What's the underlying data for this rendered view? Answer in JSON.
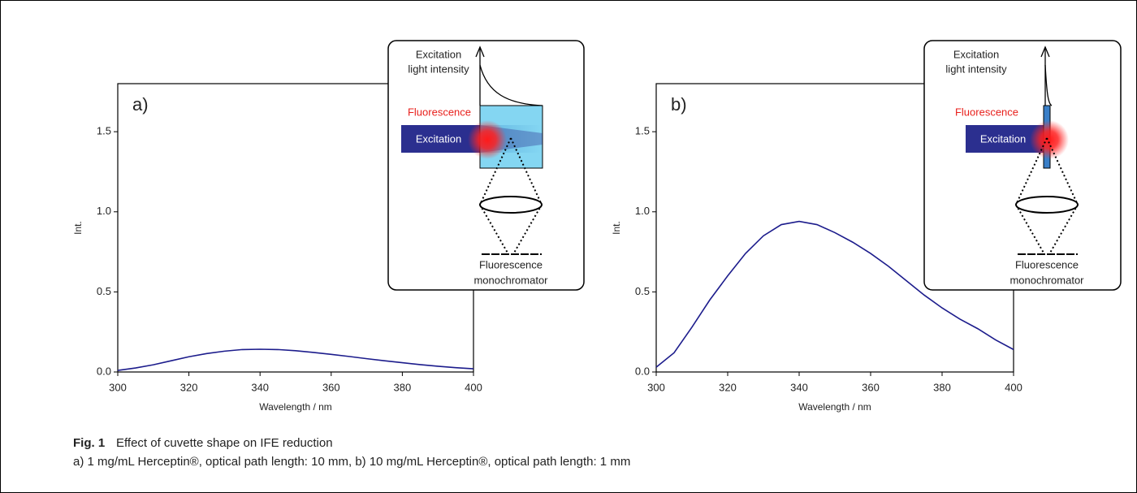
{
  "chart_data": [
    {
      "type": "line",
      "panel_label": "a)",
      "xlabel": "Wavelength / nm",
      "ylabel": "Int.",
      "xlim": [
        300,
        400
      ],
      "ylim": [
        0,
        1.8
      ],
      "xticks": [
        300,
        320,
        340,
        360,
        380,
        400
      ],
      "yticks": [
        {
          "value": 0,
          "label": "0.0"
        },
        0.5,
        {
          "value": 1,
          "label": "1.0"
        },
        1.5
      ],
      "x": [
        300,
        305,
        310,
        315,
        320,
        325,
        330,
        335,
        340,
        345,
        350,
        355,
        360,
        365,
        370,
        375,
        380,
        385,
        390,
        395,
        400
      ],
      "series": [
        {
          "color": "#1c1c8c",
          "values": [
            0.01,
            0.025,
            0.045,
            0.07,
            0.095,
            0.115,
            0.13,
            0.14,
            0.142,
            0.14,
            0.133,
            0.122,
            0.11,
            0.097,
            0.083,
            0.07,
            0.058,
            0.046,
            0.036,
            0.027,
            0.02
          ]
        }
      ],
      "inset": {
        "top_label": [
          "Excitation",
          "light intensity"
        ],
        "fluorescence": "Fluorescence",
        "excitation": "Excitation",
        "bottom_label": [
          "Fluorescence",
          "monochromator"
        ]
      }
    },
    {
      "type": "line",
      "panel_label": "b)",
      "xlabel": "Wavelength / nm",
      "ylabel": "Int.",
      "xlim": [
        300,
        400
      ],
      "ylim": [
        0,
        1.8
      ],
      "xticks": [
        300,
        320,
        340,
        360,
        380,
        400
      ],
      "yticks": [
        {
          "value": 0,
          "label": "0.0"
        },
        0.5,
        {
          "value": 1,
          "label": "1.0"
        },
        1.5
      ],
      "x": [
        300,
        305,
        310,
        315,
        320,
        325,
        330,
        335,
        340,
        345,
        350,
        355,
        360,
        365,
        370,
        375,
        380,
        385,
        390,
        395,
        400
      ],
      "series": [
        {
          "color": "#1c1c8c",
          "values": [
            0.03,
            0.12,
            0.28,
            0.45,
            0.6,
            0.74,
            0.85,
            0.92,
            0.94,
            0.92,
            0.87,
            0.81,
            0.74,
            0.66,
            0.57,
            0.48,
            0.4,
            0.33,
            0.27,
            0.2,
            0.14
          ]
        }
      ],
      "inset": {
        "top_label": [
          "Excitation",
          "light intensity"
        ],
        "fluorescence": "Fluorescence",
        "excitation": "Excitation",
        "bottom_label": [
          "Fluorescence",
          "monochromator"
        ]
      }
    }
  ],
  "caption": {
    "label": "Fig. 1",
    "title": "Effect of cuvette shape on IFE reduction",
    "detail": "a) 1 mg/mL Herceptin®, optical path length: 10 mm, b) 10 mg/mL Herceptin®, optical path length: 1 mm"
  }
}
